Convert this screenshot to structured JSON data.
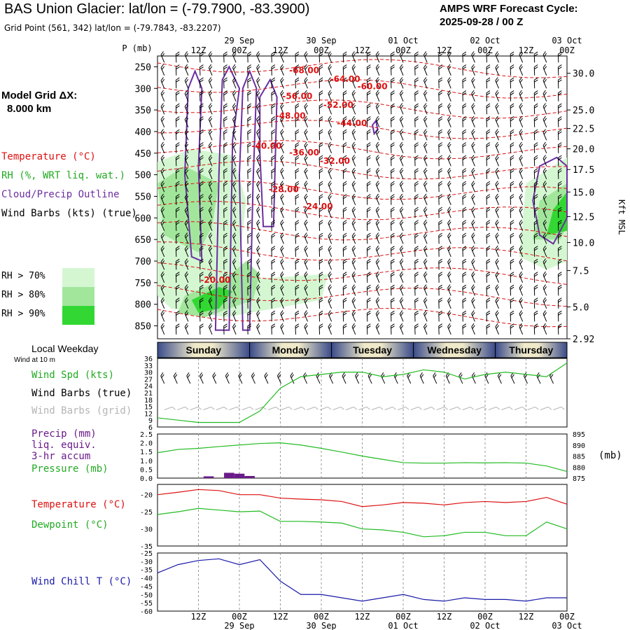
{
  "header": {
    "title": "BAS Union Glacier:  lat/lon = (-79.7900, -83.3900)",
    "subtitle": "Grid Point (561, 342) lat/lon = (-79.7843, -83.2207)",
    "cycle_line1": "AMPS WRF Forecast Cycle:",
    "cycle_line2": "2025-09-28 / 00  Z"
  },
  "model_grid": {
    "line1": "Model Grid ΔX:",
    "line2": "8.000 km"
  },
  "legend": {
    "temperature": "Temperature (°C)",
    "rh": "RH (%, WRT liq. wat.)",
    "cloud": "Cloud/Precip Outline",
    "wind": "Wind Barbs (kts) (true)",
    "rh70": "RH > 70%",
    "rh80": "RH > 80%",
    "rh90": "RH > 90%"
  },
  "colors": {
    "temperature": "#dd1111",
    "rh70": "#d4f7d2",
    "rh80": "#a2e69c",
    "rh90": "#33d733",
    "cloud": "#6a2fa0",
    "wind_speed": "#22bb22",
    "pressure": "#22bb22",
    "dewpoint": "#22bb22",
    "wind_chill": "#1a1aaa",
    "precip": "#6a1a8a",
    "grid_barbs": "#b5b5b5"
  },
  "time_axis": {
    "hour_ticks": [
      "12Z",
      "00Z",
      "12Z",
      "00Z",
      "12Z",
      "00Z",
      "12Z",
      "00Z",
      "12Z",
      "00Z"
    ],
    "date_labels": [
      "29 Sep",
      "30 Sep",
      "01 Oct",
      "02 Oct",
      "03 Oct"
    ]
  },
  "weekday": {
    "title": "Local Weekday",
    "days": [
      "Sunday",
      "Monday",
      "Tuesday",
      "Wednesday",
      "Thursday"
    ]
  },
  "panels": {
    "wind_at_10m": "Wind at 10 m",
    "wind_speed_label": "Wind Spd (kts)",
    "wind_barbs_true": "Wind Barbs (true)",
    "wind_barbs_grid": "Wind Barbs (grid)",
    "precip_label_1": "Precip (mm)",
    "precip_label_2": "liq. equiv.",
    "precip_label_3": "3-hr accum",
    "pressure_label": "Pressure (mb)",
    "pressure_unit": "(mb)",
    "temp_label": "Temperature (°C)",
    "dew_label": "Dewpoint (°C)",
    "chill_label": "Wind Chill T (°C)"
  },
  "chart_data": [
    {
      "type": "line",
      "name": "cross-section",
      "ylabel": "P (mb)",
      "ylabel_right": "Kft MSL",
      "pressure_ticks": [
        250,
        300,
        350,
        400,
        450,
        500,
        550,
        600,
        650,
        700,
        750,
        800,
        850
      ],
      "kft_ticks": [
        "30.0",
        "25.0",
        "22.5",
        "20.0",
        "17.5",
        "15.0",
        "12.5",
        "10.0",
        "7.5",
        "5.0",
        "2.92"
      ],
      "kft_tick_pressures": [
        265,
        350,
        393,
        440,
        488,
        540,
        597,
        657,
        722,
        806,
        880
      ],
      "temperature_labels": [
        {
          "text": "-68.00",
          "t": 43,
          "p": 265
        },
        {
          "text": "-64.00",
          "t": 55,
          "p": 285
        },
        {
          "text": "-60.00",
          "t": 63,
          "p": 302
        },
        {
          "text": "-56.00",
          "t": 41,
          "p": 325
        },
        {
          "text": "-52.00",
          "t": 53,
          "p": 345
        },
        {
          "text": "-48.00",
          "t": 39,
          "p": 370
        },
        {
          "text": "-44.00",
          "t": 57,
          "p": 387
        },
        {
          "text": "-40.00",
          "t": 32,
          "p": 440
        },
        {
          "text": "-36.00",
          "t": 43,
          "p": 455
        },
        {
          "text": "-32.00",
          "t": 52,
          "p": 475
        },
        {
          "text": "-28.00",
          "t": 37,
          "p": 540
        },
        {
          "text": "-24.00",
          "t": 47,
          "p": 580
        },
        {
          "text": "-20.00",
          "t": 17,
          "p": 750
        }
      ],
      "time_range_hours": [
        0,
        120
      ],
      "pressure_range": [
        225,
        880
      ]
    },
    {
      "type": "line",
      "name": "wind",
      "yticks": [
        6,
        9,
        12,
        15,
        18,
        21,
        24,
        27,
        30,
        33,
        36
      ],
      "ylim": [
        6,
        36
      ],
      "t": [
        0,
        6,
        12,
        18,
        24,
        30,
        36,
        42,
        48,
        54,
        60,
        66,
        72,
        78,
        84,
        90,
        96,
        102,
        108,
        114,
        120
      ],
      "series": [
        {
          "name": "Wind Spd (kts)",
          "values": [
            10,
            9,
            8,
            8,
            8,
            13,
            23,
            28,
            29,
            30,
            30,
            28,
            29,
            31,
            30,
            27,
            29,
            30,
            29,
            28,
            34
          ]
        }
      ]
    },
    {
      "type": "line",
      "name": "precip-pressure",
      "precip_ticks": [
        "0.0",
        "0.5",
        "1.0",
        "1.5",
        "2.0",
        "2.5"
      ],
      "precip_ylim": [
        0,
        2.5
      ],
      "pressure_ticks": [
        875,
        880,
        885,
        890,
        895
      ],
      "pressure_ylim": [
        875,
        895
      ],
      "t": [
        0,
        6,
        12,
        18,
        24,
        30,
        36,
        42,
        48,
        54,
        60,
        66,
        72,
        78,
        84,
        90,
        96,
        102,
        108,
        114,
        120
      ],
      "series": [
        {
          "name": "Pressure (mb)",
          "values": [
            886.5,
            888.0,
            888.5,
            889.3,
            890.0,
            890.7,
            891.0,
            890.0,
            888.5,
            886.8,
            885.0,
            883.5,
            882.0,
            881.8,
            881.8,
            882.0,
            881.9,
            882.0,
            881.8,
            880.5,
            878.0
          ]
        }
      ],
      "precip_bars": [
        {
          "t": 15,
          "value": 0.1
        },
        {
          "t": 21,
          "value": 0.3
        },
        {
          "t": 24,
          "value": 0.25
        },
        {
          "t": 27,
          "value": 0.12
        }
      ]
    },
    {
      "type": "line",
      "name": "temperature-dewpoint",
      "yticks": [
        -35,
        -30,
        -25,
        -20
      ],
      "ylim": [
        -35,
        -17
      ],
      "t": [
        0,
        6,
        12,
        18,
        24,
        30,
        36,
        42,
        48,
        54,
        60,
        66,
        72,
        78,
        84,
        90,
        96,
        102,
        108,
        114,
        120
      ],
      "series": [
        {
          "name": "Temperature (°C)",
          "values": [
            -20.0,
            -19.3,
            -18.5,
            -18.8,
            -20.0,
            -20.0,
            -21.0,
            -21.3,
            -21.5,
            -22.0,
            -23.5,
            -23.0,
            -22.3,
            -22.5,
            -23.0,
            -22.3,
            -22.0,
            -22.3,
            -22.0,
            -20.8,
            -22.8
          ]
        },
        {
          "name": "Dewpoint (°C)",
          "values": [
            -25.8,
            -25.0,
            -24.0,
            -24.5,
            -25.0,
            -24.8,
            -27.8,
            -27.8,
            -28.0,
            -28.3,
            -30.0,
            -30.3,
            -31.0,
            -32.3,
            -32.0,
            -31.0,
            -31.0,
            -32.0,
            -32.0,
            -28.0,
            -30.0
          ]
        }
      ]
    },
    {
      "type": "line",
      "name": "wind-chill",
      "yticks": [
        -60,
        -55,
        -50,
        -45,
        -40,
        -35,
        -30,
        -25
      ],
      "ylim": [
        -60,
        -25
      ],
      "t": [
        0,
        6,
        12,
        18,
        24,
        30,
        36,
        42,
        48,
        54,
        60,
        66,
        72,
        78,
        84,
        90,
        96,
        102,
        108,
        114,
        120
      ],
      "series": [
        {
          "name": "Wind Chill T (°C)",
          "values": [
            -37.0,
            -32.0,
            -29.5,
            -28.5,
            -32.0,
            -29.0,
            -42.0,
            -50.0,
            -50.0,
            -52.0,
            -54.0,
            -52.0,
            -50.0,
            -53.0,
            -54.0,
            -52.0,
            -53.0,
            -53.0,
            -54.0,
            -52.0,
            -52.0
          ]
        }
      ]
    }
  ]
}
